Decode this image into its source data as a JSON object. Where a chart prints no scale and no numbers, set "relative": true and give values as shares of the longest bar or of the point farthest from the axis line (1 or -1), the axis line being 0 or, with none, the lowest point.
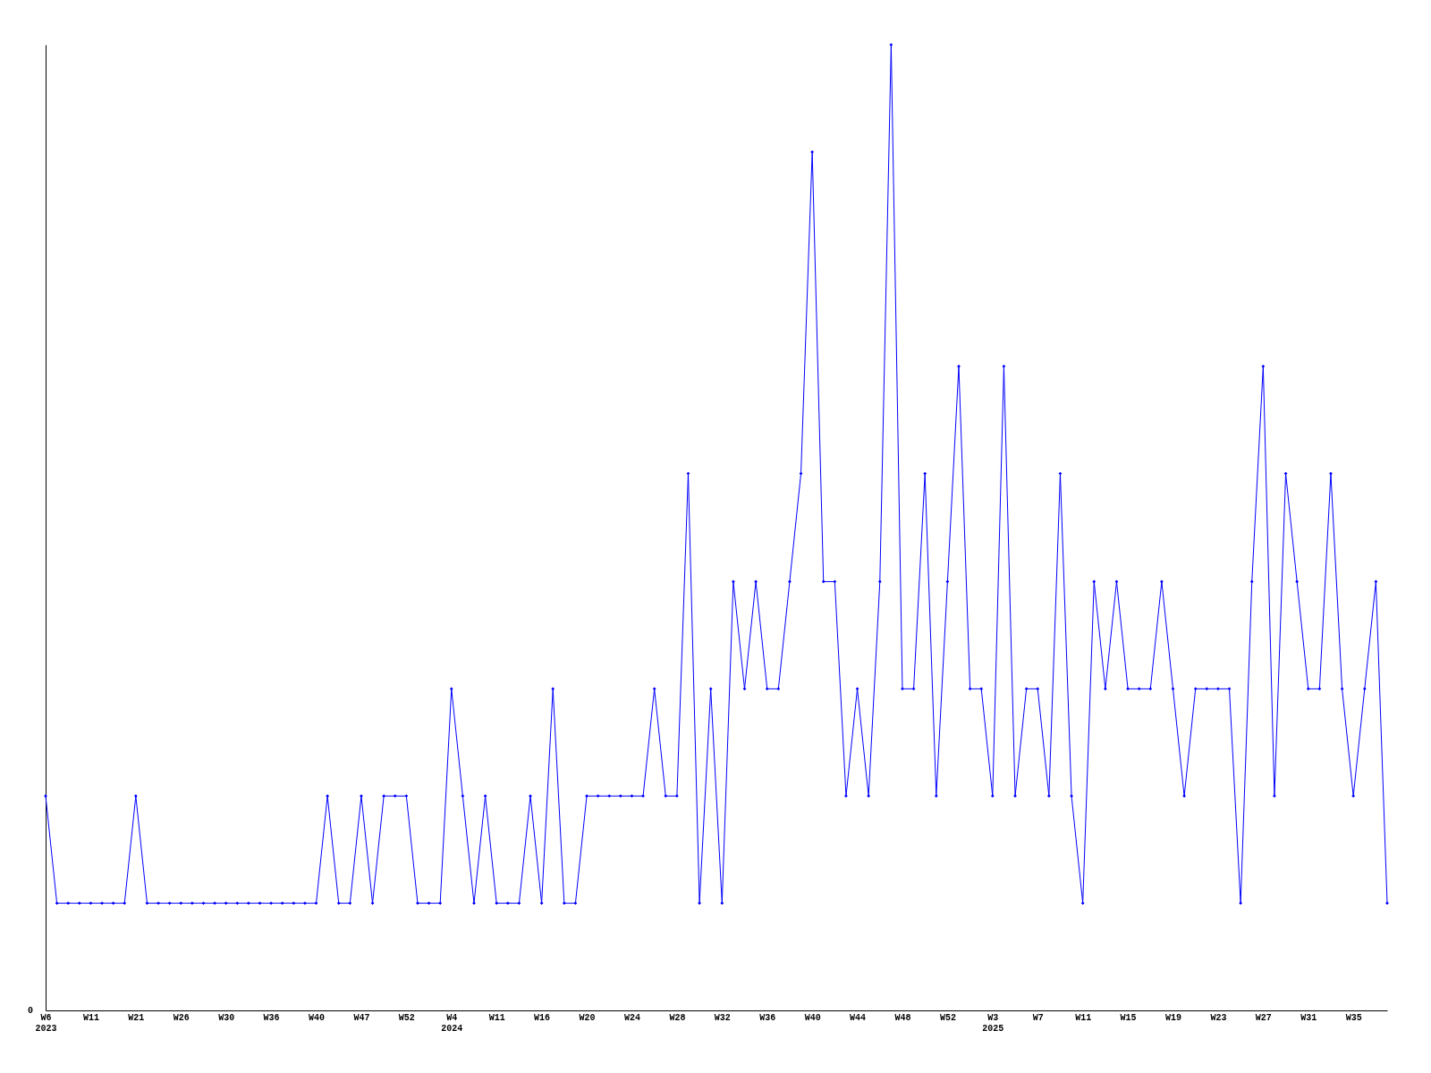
{
  "chart_data": {
    "type": "line",
    "relative": true,
    "grid": false,
    "marker": "diamond",
    "line_style": "solid",
    "categories": [
      "W6\n2023",
      null,
      null,
      null,
      "W11",
      null,
      null,
      null,
      "W21",
      null,
      null,
      null,
      "W26",
      null,
      null,
      null,
      "W30",
      null,
      null,
      null,
      "W36",
      null,
      null,
      null,
      "W40",
      null,
      null,
      null,
      "W47",
      null,
      null,
      null,
      "W52",
      null,
      null,
      null,
      "W4\n2024",
      null,
      null,
      null,
      "W11",
      null,
      null,
      null,
      "W16",
      null,
      null,
      null,
      "W20",
      null,
      null,
      null,
      "W24",
      null,
      null,
      null,
      "W28",
      null,
      null,
      null,
      "W32",
      null,
      null,
      null,
      "W36",
      null,
      null,
      null,
      "W40",
      null,
      null,
      null,
      "W44",
      null,
      null,
      null,
      "W48",
      null,
      null,
      null,
      "W52",
      null,
      null,
      null,
      "W3\n2025",
      null,
      null,
      null,
      "W7",
      null,
      null,
      null,
      "W11",
      null,
      null,
      null,
      "W15",
      null,
      null,
      null,
      "W19",
      null,
      null,
      null,
      "W23",
      null,
      null,
      null,
      "W27",
      null,
      null,
      null,
      "W31",
      null,
      null,
      null,
      "W35",
      null,
      null,
      null
    ],
    "series": [
      {
        "color": "#0000ff",
        "values": [
          0.222,
          0.111,
          0.111,
          0.111,
          0.111,
          0.111,
          0.111,
          0.111,
          0.222,
          0.111,
          0.111,
          0.111,
          0.111,
          0.111,
          0.111,
          0.111,
          0.111,
          0.111,
          0.111,
          0.111,
          0.111,
          0.111,
          0.111,
          0.111,
          0.111,
          0.222,
          0.111,
          0.111,
          0.222,
          0.111,
          0.222,
          0.222,
          0.222,
          0.111,
          0.111,
          0.111,
          0.333,
          0.222,
          0.111,
          0.222,
          0.111,
          0.111,
          0.111,
          0.222,
          0.111,
          0.333,
          0.111,
          0.111,
          0.222,
          0.222,
          0.222,
          0.222,
          0.222,
          0.222,
          0.333,
          0.222,
          0.222,
          0.556,
          0.111,
          0.333,
          0.111,
          0.444,
          0.333,
          0.444,
          0.333,
          0.333,
          0.444,
          0.556,
          0.889,
          0.444,
          0.444,
          0.222,
          0.333,
          0.222,
          0.444,
          1,
          0.333,
          0.333,
          0.556,
          0.222,
          0.444,
          0.667,
          0.333,
          0.333,
          0.222,
          0.667,
          0.222,
          0.333,
          0.333,
          0.222,
          0.556,
          0.222,
          0.111,
          0.444,
          0.333,
          0.444,
          0.333,
          0.333,
          0.333,
          0.444,
          0.333,
          0.222,
          0.333,
          0.333,
          0.333,
          0.333,
          0.111,
          0.444,
          0.667,
          0.222,
          0.556,
          0.444,
          0.333,
          0.333,
          0.556,
          0.333,
          0.222,
          0.333,
          0.444,
          0.111
        ]
      }
    ],
    "annotations": [
      "0"
    ]
  }
}
